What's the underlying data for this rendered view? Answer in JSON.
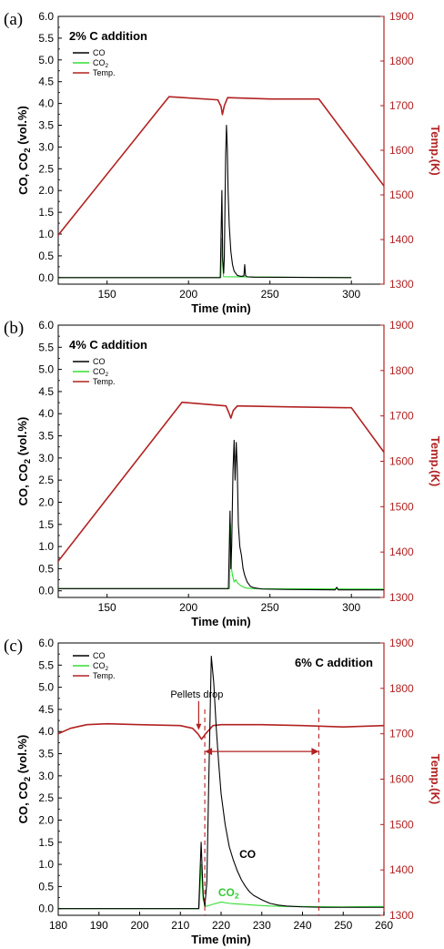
{
  "chart_data": [
    {
      "type": "line",
      "panel_label": "(a)",
      "title": "2% C addition",
      "xlabel": "Time (min)",
      "ylabel": "CO, CO",
      "ylabel_sub": "2",
      "ylabel_tail": " (vol.%)",
      "y2label": "Temp.(K)",
      "xlim": [
        120,
        320
      ],
      "ylim": [
        -0.15,
        6.0
      ],
      "y2lim": [
        1300,
        1900
      ],
      "xticks": [
        "150",
        "200",
        "250",
        "300"
      ],
      "xtick_values": [
        150,
        200,
        250,
        300
      ],
      "yticks": [
        "0.0",
        "0.5",
        "1.0",
        "1.5",
        "2.0",
        "2.5",
        "3.0",
        "3.5",
        "4.0",
        "4.5",
        "5.0",
        "5.5",
        "6.0"
      ],
      "ytick_values": [
        0,
        0.5,
        1,
        1.5,
        2,
        2.5,
        3,
        3.5,
        4,
        4.5,
        5,
        5.5,
        6
      ],
      "y2ticks": [
        "1300",
        "1400",
        "1500",
        "1600",
        "1700",
        "1800",
        "1900"
      ],
      "y2tick_values": [
        1300,
        1400,
        1500,
        1600,
        1700,
        1800,
        1900
      ],
      "legend": [
        "CO",
        "CO",
        "Temp."
      ],
      "legend_sub": [
        "",
        "2",
        ""
      ],
      "colors": {
        "CO": "#000000",
        "CO2": "#33dd33",
        "Temp": "#b22222"
      },
      "series": [
        {
          "name": "Temp.",
          "axis": "right",
          "x": [
            120,
            188,
            218,
            220,
            220.8,
            222,
            224,
            250,
            280,
            320
          ],
          "y": [
            1410,
            1720,
            1713,
            1698,
            1680,
            1700,
            1718,
            1715,
            1715,
            1520
          ]
        },
        {
          "name": "CO",
          "axis": "left",
          "x": [
            120,
            219.5,
            220.5,
            221,
            221.6,
            222,
            222.8,
            223.3,
            223.8,
            224.3,
            225,
            226,
            227,
            228,
            230,
            232,
            234,
            234.5,
            235,
            236,
            240,
            300
          ],
          "y": [
            0,
            0,
            2.0,
            0.4,
            0.1,
            0.5,
            2.8,
            3.5,
            3.0,
            2.0,
            1.2,
            0.6,
            0.3,
            0.15,
            0.05,
            0.03,
            0.04,
            0.3,
            0.05,
            0.02,
            0.01,
            0.0
          ]
        },
        {
          "name": "CO",
          "sub": "2",
          "axis": "left",
          "x": [
            120,
            219.8,
            220.5,
            221,
            221.5,
            300
          ],
          "y": [
            0,
            0,
            0.9,
            0.3,
            0.02,
            0.0
          ]
        }
      ]
    },
    {
      "type": "line",
      "panel_label": "(b)",
      "title": "4% C addition",
      "xlabel": "Time (min)",
      "ylabel": "CO, CO",
      "ylabel_sub": "2",
      "ylabel_tail": " (vol.%)",
      "y2label": "Temp.(K)",
      "xlim": [
        120,
        320
      ],
      "ylim": [
        -0.15,
        6.0
      ],
      "y2lim": [
        1300,
        1900
      ],
      "xticks": [
        "150",
        "200",
        "250",
        "300"
      ],
      "xtick_values": [
        150,
        200,
        250,
        300
      ],
      "yticks": [
        "0.0",
        "0.5",
        "1.0",
        "1.5",
        "2.0",
        "2.5",
        "3.0",
        "3.5",
        "4.0",
        "4.5",
        "5.0",
        "5.5",
        "6.0"
      ],
      "ytick_values": [
        0,
        0.5,
        1,
        1.5,
        2,
        2.5,
        3,
        3.5,
        4,
        4.5,
        5,
        5.5,
        6
      ],
      "y2ticks": [
        "1300",
        "1400",
        "1500",
        "1600",
        "1700",
        "1800",
        "1900"
      ],
      "y2tick_values": [
        1300,
        1400,
        1500,
        1600,
        1700,
        1800,
        1900
      ],
      "legend": [
        "CO",
        "CO",
        "Temp."
      ],
      "legend_sub": [
        "",
        "2",
        ""
      ],
      "colors": {
        "CO": "#000000",
        "CO2": "#33dd33",
        "Temp": "#b22222"
      },
      "series": [
        {
          "name": "Temp.",
          "axis": "right",
          "x": [
            120,
            196,
            223,
            225,
            226,
            227.5,
            230,
            260,
            300,
            320
          ],
          "y": [
            1380,
            1730,
            1722,
            1705,
            1695,
            1712,
            1722,
            1720,
            1718,
            1620
          ]
        },
        {
          "name": "CO",
          "axis": "left",
          "x": [
            120,
            224.5,
            225.5,
            226,
            226.5,
            227.3,
            228,
            228.6,
            229.3,
            229.9,
            230.6,
            231.5,
            232.5,
            233.5,
            234.5,
            236,
            238,
            240,
            245,
            260,
            290,
            291,
            292,
            320
          ],
          "y": [
            0.05,
            0.05,
            1.8,
            0.5,
            1.0,
            2.7,
            3.4,
            2.5,
            3.35,
            2.8,
            1.5,
            1.0,
            0.8,
            0.5,
            0.35,
            0.2,
            0.1,
            0.07,
            0.04,
            0.03,
            0.02,
            0.08,
            0.02,
            0.02
          ]
        },
        {
          "name": "CO",
          "sub": "2",
          "axis": "left",
          "x": [
            120,
            225.2,
            225.8,
            226.4,
            227,
            228,
            229,
            230,
            232,
            234,
            236,
            240,
            320
          ],
          "y": [
            0.05,
            0.05,
            1.5,
            0.5,
            0.35,
            0.2,
            0.25,
            0.18,
            0.12,
            0.08,
            0.06,
            0.05,
            0.04
          ]
        }
      ]
    },
    {
      "type": "line",
      "panel_label": "(c)",
      "title": "6% C addition",
      "xlabel": "Time (min)",
      "ylabel": "CO, CO",
      "ylabel_sub": "2",
      "ylabel_tail": " (vol.%)",
      "y2label": "Temp.(K)",
      "xlim": [
        180,
        260
      ],
      "ylim": [
        -0.15,
        6.0
      ],
      "y2lim": [
        1300,
        1900
      ],
      "xticks": [
        "180",
        "190",
        "200",
        "210",
        "220",
        "230",
        "240",
        "250",
        "260"
      ],
      "xtick_values": [
        180,
        190,
        200,
        210,
        220,
        230,
        240,
        250,
        260
      ],
      "yticks": [
        "0.0",
        "0.5",
        "1.0",
        "1.5",
        "2.0",
        "2.5",
        "3.0",
        "3.5",
        "4.0",
        "4.5",
        "5.0",
        "5.5",
        "6.0"
      ],
      "ytick_values": [
        0,
        0.5,
        1,
        1.5,
        2,
        2.5,
        3,
        3.5,
        4,
        4.5,
        5,
        5.5,
        6
      ],
      "y2ticks": [
        "1300",
        "1400",
        "1500",
        "1600",
        "1700",
        "1800",
        "1900"
      ],
      "y2tick_values": [
        1300,
        1400,
        1500,
        1600,
        1700,
        1800,
        1900
      ],
      "legend": [
        "CO",
        "CO",
        "Temp."
      ],
      "legend_sub": [
        "",
        "2",
        ""
      ],
      "colors": {
        "CO": "#000000",
        "CO2": "#33dd33",
        "Temp": "#b22222"
      },
      "annotations": {
        "pellets_drop": "Pellets drop",
        "co_label": "CO",
        "co2_label": "CO",
        "co2_label_sub": "2",
        "pellets_drop_x": 214.5,
        "interval_start_x": 216,
        "interval_end_x": 244
      },
      "series": [
        {
          "name": "Temp.",
          "axis": "right",
          "x": [
            180,
            183,
            187,
            192,
            200,
            210,
            213,
            214.3,
            215.2,
            216.2,
            218,
            220,
            230,
            240,
            250,
            260
          ],
          "y": [
            1700,
            1712,
            1720,
            1722,
            1720,
            1718,
            1712,
            1700,
            1688,
            1700,
            1718,
            1720,
            1720,
            1718,
            1715,
            1718
          ]
        },
        {
          "name": "CO",
          "axis": "left",
          "x": [
            180,
            214.5,
            215.1,
            215.6,
            216,
            216.5,
            217,
            217.6,
            218.2,
            218.8,
            219.4,
            220,
            221,
            222,
            223,
            224,
            225,
            226,
            227,
            228,
            230,
            232,
            234,
            236,
            238,
            240,
            245,
            250,
            260
          ],
          "y": [
            0.0,
            0.0,
            1.5,
            0.3,
            0.05,
            0.6,
            3.0,
            5.7,
            5.1,
            4.1,
            3.3,
            2.6,
            1.9,
            1.4,
            1.1,
            0.85,
            0.65,
            0.5,
            0.38,
            0.3,
            0.2,
            0.12,
            0.08,
            0.06,
            0.05,
            0.04,
            0.03,
            0.03,
            0.03
          ]
        },
        {
          "name": "CO",
          "sub": "2",
          "axis": "left",
          "x": [
            180,
            214.6,
            215.1,
            215.6,
            216.2,
            218,
            220,
            222,
            225,
            228,
            232,
            236,
            240,
            250,
            260
          ],
          "y": [
            0.0,
            0.0,
            1.0,
            0.2,
            0.05,
            0.1,
            0.15,
            0.12,
            0.1,
            0.08,
            0.06,
            0.05,
            0.05,
            0.04,
            0.05
          ]
        }
      ]
    }
  ]
}
